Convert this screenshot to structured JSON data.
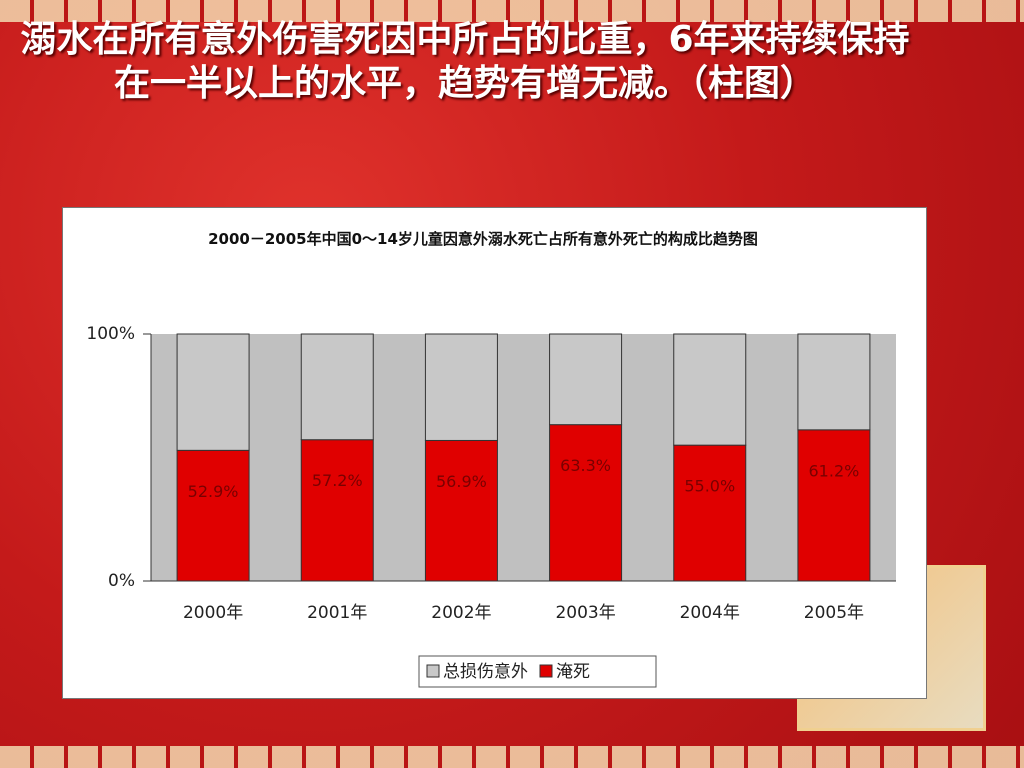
{
  "slide_title": "溺水在所有意外伤害死因中所占的比重，6年来持续保持在一半以上的水平，趋势有增无减。（柱图）",
  "chart_data": {
    "type": "stacked-bar",
    "title": "2000－2005年中国0～14岁儿童因意外溺水死亡占所有意外死亡的构成比趋势图",
    "categories": [
      "2000年",
      "2001年",
      "2002年",
      "2003年",
      "2004年",
      "2005年"
    ],
    "series": [
      {
        "name": "总损伤意外",
        "color": "#c8c8c8",
        "values": [
          47.1,
          42.8,
          43.1,
          36.7,
          45.0,
          38.8
        ]
      },
      {
        "name": "淹死",
        "color": "#e00000",
        "values": [
          52.9,
          57.2,
          56.9,
          63.3,
          55.0,
          61.2
        ],
        "value_labels": [
          "52.9%",
          "57.2%",
          "56.9%",
          "63.3%",
          "55.0%",
          "61.2%"
        ]
      }
    ],
    "ylim": [
      0,
      100
    ],
    "yticks": [
      {
        "value": 0,
        "label": "0%"
      },
      {
        "value": 100,
        "label": "100%"
      }
    ],
    "legend": "bottom"
  }
}
